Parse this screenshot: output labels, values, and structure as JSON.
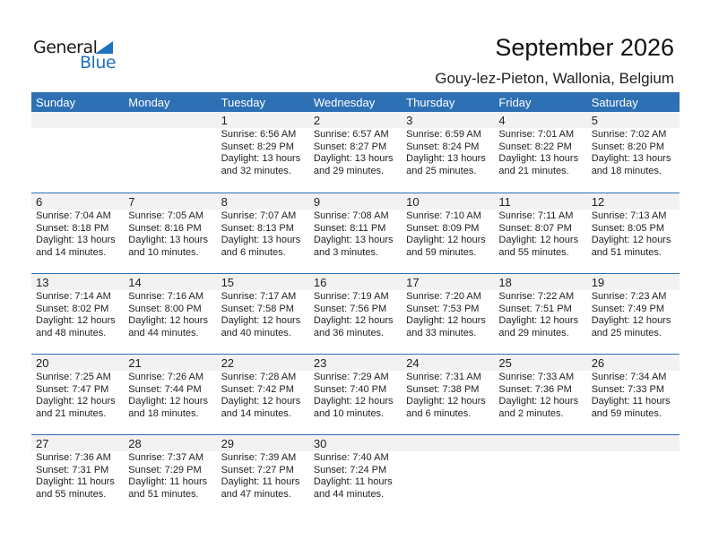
{
  "logo": {
    "word1": "General",
    "word2": "Blue"
  },
  "title": "September 2026",
  "location": "Gouy-lez-Pieton, Wallonia, Belgium",
  "colors": {
    "header": "#2e70b4",
    "date_strip": "#f2f2f2",
    "brand": "#1e73be"
  },
  "weekdays": [
    "Sunday",
    "Monday",
    "Tuesday",
    "Wednesday",
    "Thursday",
    "Friday",
    "Saturday"
  ],
  "weeks": [
    [
      null,
      null,
      {
        "day": "1",
        "sunrise": "Sunrise: 6:56 AM",
        "sunset": "Sunset: 8:29 PM",
        "daylight1": "Daylight: 13 hours",
        "daylight2": "and 32 minutes."
      },
      {
        "day": "2",
        "sunrise": "Sunrise: 6:57 AM",
        "sunset": "Sunset: 8:27 PM",
        "daylight1": "Daylight: 13 hours",
        "daylight2": "and 29 minutes."
      },
      {
        "day": "3",
        "sunrise": "Sunrise: 6:59 AM",
        "sunset": "Sunset: 8:24 PM",
        "daylight1": "Daylight: 13 hours",
        "daylight2": "and 25 minutes."
      },
      {
        "day": "4",
        "sunrise": "Sunrise: 7:01 AM",
        "sunset": "Sunset: 8:22 PM",
        "daylight1": "Daylight: 13 hours",
        "daylight2": "and 21 minutes."
      },
      {
        "day": "5",
        "sunrise": "Sunrise: 7:02 AM",
        "sunset": "Sunset: 8:20 PM",
        "daylight1": "Daylight: 13 hours",
        "daylight2": "and 18 minutes."
      }
    ],
    [
      {
        "day": "6",
        "sunrise": "Sunrise: 7:04 AM",
        "sunset": "Sunset: 8:18 PM",
        "daylight1": "Daylight: 13 hours",
        "daylight2": "and 14 minutes."
      },
      {
        "day": "7",
        "sunrise": "Sunrise: 7:05 AM",
        "sunset": "Sunset: 8:16 PM",
        "daylight1": "Daylight: 13 hours",
        "daylight2": "and 10 minutes."
      },
      {
        "day": "8",
        "sunrise": "Sunrise: 7:07 AM",
        "sunset": "Sunset: 8:13 PM",
        "daylight1": "Daylight: 13 hours",
        "daylight2": "and 6 minutes."
      },
      {
        "day": "9",
        "sunrise": "Sunrise: 7:08 AM",
        "sunset": "Sunset: 8:11 PM",
        "daylight1": "Daylight: 13 hours",
        "daylight2": "and 3 minutes."
      },
      {
        "day": "10",
        "sunrise": "Sunrise: 7:10 AM",
        "sunset": "Sunset: 8:09 PM",
        "daylight1": "Daylight: 12 hours",
        "daylight2": "and 59 minutes."
      },
      {
        "day": "11",
        "sunrise": "Sunrise: 7:11 AM",
        "sunset": "Sunset: 8:07 PM",
        "daylight1": "Daylight: 12 hours",
        "daylight2": "and 55 minutes."
      },
      {
        "day": "12",
        "sunrise": "Sunrise: 7:13 AM",
        "sunset": "Sunset: 8:05 PM",
        "daylight1": "Daylight: 12 hours",
        "daylight2": "and 51 minutes."
      }
    ],
    [
      {
        "day": "13",
        "sunrise": "Sunrise: 7:14 AM",
        "sunset": "Sunset: 8:02 PM",
        "daylight1": "Daylight: 12 hours",
        "daylight2": "and 48 minutes."
      },
      {
        "day": "14",
        "sunrise": "Sunrise: 7:16 AM",
        "sunset": "Sunset: 8:00 PM",
        "daylight1": "Daylight: 12 hours",
        "daylight2": "and 44 minutes."
      },
      {
        "day": "15",
        "sunrise": "Sunrise: 7:17 AM",
        "sunset": "Sunset: 7:58 PM",
        "daylight1": "Daylight: 12 hours",
        "daylight2": "and 40 minutes."
      },
      {
        "day": "16",
        "sunrise": "Sunrise: 7:19 AM",
        "sunset": "Sunset: 7:56 PM",
        "daylight1": "Daylight: 12 hours",
        "daylight2": "and 36 minutes."
      },
      {
        "day": "17",
        "sunrise": "Sunrise: 7:20 AM",
        "sunset": "Sunset: 7:53 PM",
        "daylight1": "Daylight: 12 hours",
        "daylight2": "and 33 minutes."
      },
      {
        "day": "18",
        "sunrise": "Sunrise: 7:22 AM",
        "sunset": "Sunset: 7:51 PM",
        "daylight1": "Daylight: 12 hours",
        "daylight2": "and 29 minutes."
      },
      {
        "day": "19",
        "sunrise": "Sunrise: 7:23 AM",
        "sunset": "Sunset: 7:49 PM",
        "daylight1": "Daylight: 12 hours",
        "daylight2": "and 25 minutes."
      }
    ],
    [
      {
        "day": "20",
        "sunrise": "Sunrise: 7:25 AM",
        "sunset": "Sunset: 7:47 PM",
        "daylight1": "Daylight: 12 hours",
        "daylight2": "and 21 minutes."
      },
      {
        "day": "21",
        "sunrise": "Sunrise: 7:26 AM",
        "sunset": "Sunset: 7:44 PM",
        "daylight1": "Daylight: 12 hours",
        "daylight2": "and 18 minutes."
      },
      {
        "day": "22",
        "sunrise": "Sunrise: 7:28 AM",
        "sunset": "Sunset: 7:42 PM",
        "daylight1": "Daylight: 12 hours",
        "daylight2": "and 14 minutes."
      },
      {
        "day": "23",
        "sunrise": "Sunrise: 7:29 AM",
        "sunset": "Sunset: 7:40 PM",
        "daylight1": "Daylight: 12 hours",
        "daylight2": "and 10 minutes."
      },
      {
        "day": "24",
        "sunrise": "Sunrise: 7:31 AM",
        "sunset": "Sunset: 7:38 PM",
        "daylight1": "Daylight: 12 hours",
        "daylight2": "and 6 minutes."
      },
      {
        "day": "25",
        "sunrise": "Sunrise: 7:33 AM",
        "sunset": "Sunset: 7:36 PM",
        "daylight1": "Daylight: 12 hours",
        "daylight2": "and 2 minutes."
      },
      {
        "day": "26",
        "sunrise": "Sunrise: 7:34 AM",
        "sunset": "Sunset: 7:33 PM",
        "daylight1": "Daylight: 11 hours",
        "daylight2": "and 59 minutes."
      }
    ],
    [
      {
        "day": "27",
        "sunrise": "Sunrise: 7:36 AM",
        "sunset": "Sunset: 7:31 PM",
        "daylight1": "Daylight: 11 hours",
        "daylight2": "and 55 minutes."
      },
      {
        "day": "28",
        "sunrise": "Sunrise: 7:37 AM",
        "sunset": "Sunset: 7:29 PM",
        "daylight1": "Daylight: 11 hours",
        "daylight2": "and 51 minutes."
      },
      {
        "day": "29",
        "sunrise": "Sunrise: 7:39 AM",
        "sunset": "Sunset: 7:27 PM",
        "daylight1": "Daylight: 11 hours",
        "daylight2": "and 47 minutes."
      },
      {
        "day": "30",
        "sunrise": "Sunrise: 7:40 AM",
        "sunset": "Sunset: 7:24 PM",
        "daylight1": "Daylight: 11 hours",
        "daylight2": "and 44 minutes."
      },
      null,
      null,
      null
    ]
  ]
}
